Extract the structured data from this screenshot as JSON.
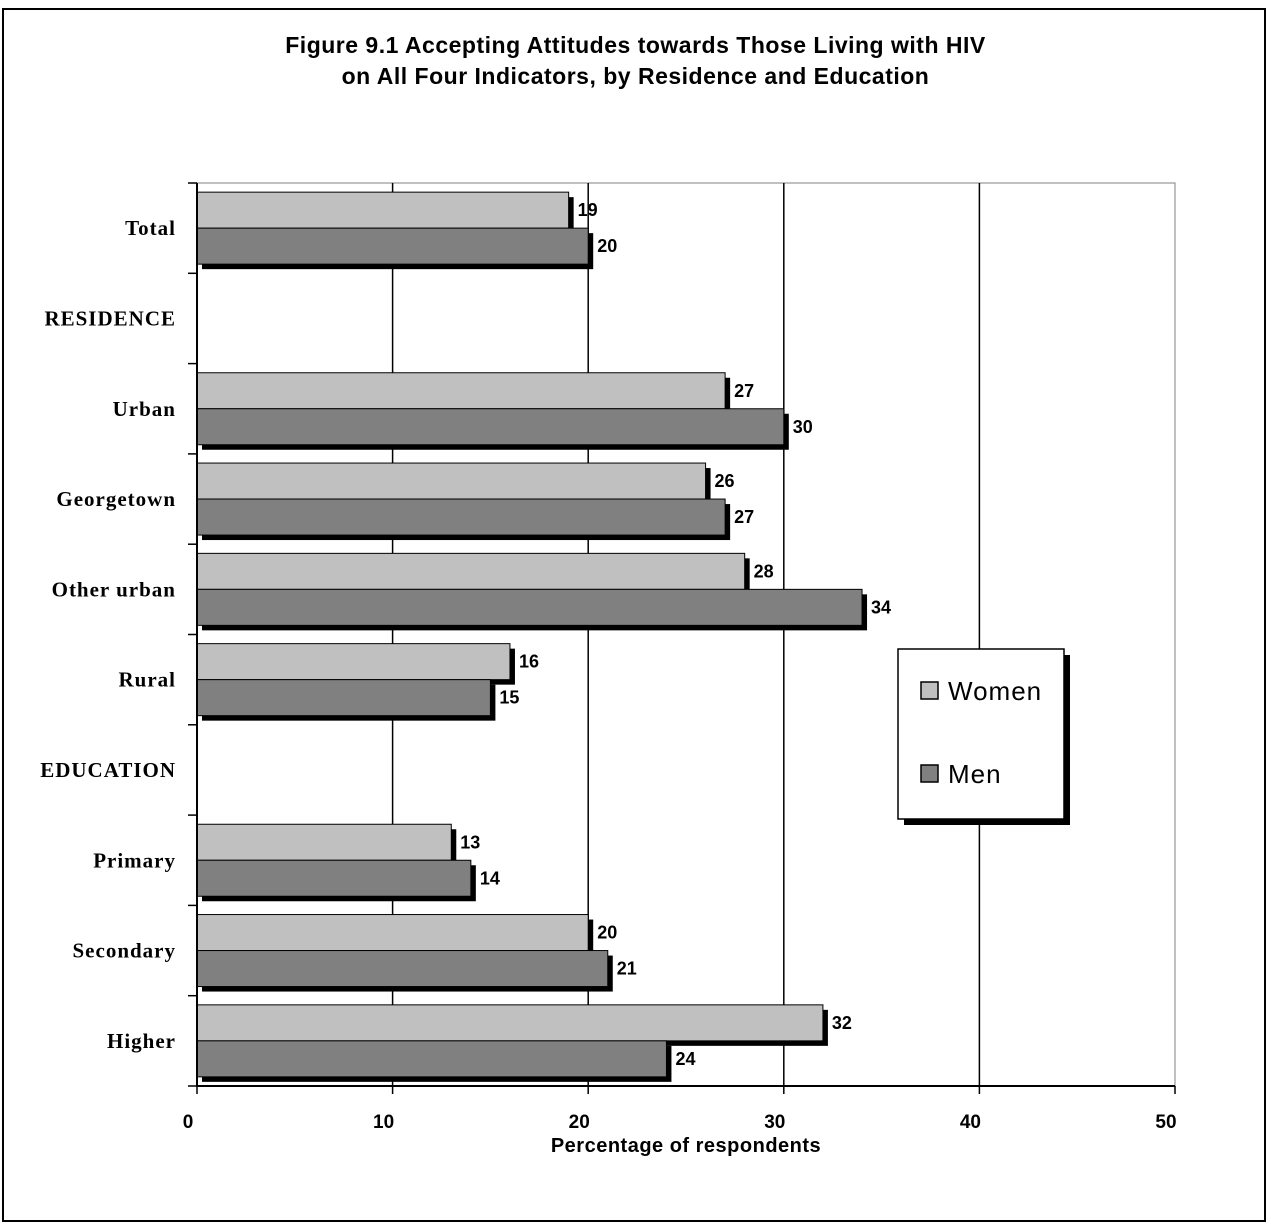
{
  "chart_data": {
    "type": "bar",
    "orientation": "horizontal",
    "title": "Figure 9.1 Accepting Attitudes towards Those Living with HIV",
    "subtitle": "on All Four Indicators, by Residence and Education",
    "xlabel": "Percentage of respondents",
    "ylabel": "",
    "xlim": [
      0,
      50
    ],
    "xticks": [
      "0",
      "10",
      "20",
      "30",
      "40",
      "50"
    ],
    "grid": true,
    "legend_position": "right",
    "categories": [
      "Total",
      "RESIDENCE",
      "Urban",
      "Georgetown",
      "Other urban",
      "Rural",
      "EDUCATION",
      "Primary",
      "Secondary",
      "Higher"
    ],
    "series": [
      {
        "name": "Women",
        "color": "#c0c0c0",
        "values": [
          19,
          null,
          27,
          26,
          28,
          16,
          null,
          13,
          20,
          32
        ]
      },
      {
        "name": "Men",
        "color": "#808080",
        "values": [
          20,
          null,
          30,
          27,
          34,
          15,
          null,
          14,
          21,
          24
        ]
      }
    ]
  }
}
